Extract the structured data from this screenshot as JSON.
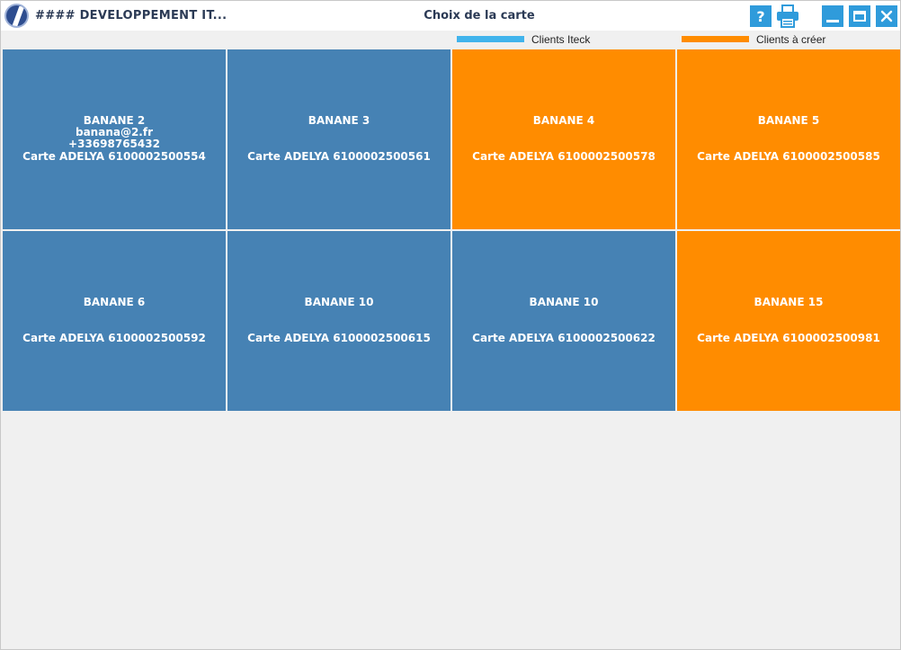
{
  "window": {
    "app_title": "####  DEVELOPPEMENT IT...",
    "title": "Choix de la carte",
    "help_glyph": "?"
  },
  "colors": {
    "iteck": "#4682b4",
    "to_create": "#ff8c00",
    "legend_iteck": "#41b4ec",
    "legend_to_create": "#ff8c00",
    "titlebar_buttons": "#2f9bdb"
  },
  "legend": {
    "iteck_label": "Clients Iteck",
    "to_create_label": "Clients à créer"
  },
  "cards": [
    {
      "name": "BANANE 2",
      "email": "banana@2.fr",
      "phone": "+33698765432",
      "card": "Carte ADELYA 6100002500554",
      "status": "iteck"
    },
    {
      "name": "BANANE 3",
      "email": "",
      "phone": "",
      "card": "Carte ADELYA 6100002500561",
      "status": "iteck"
    },
    {
      "name": "BANANE 4",
      "email": "",
      "phone": "",
      "card": "Carte ADELYA 6100002500578",
      "status": "to_create"
    },
    {
      "name": "BANANE 5",
      "email": "",
      "phone": "",
      "card": "Carte ADELYA 6100002500585",
      "status": "to_create"
    },
    {
      "name": "BANANE 6",
      "email": "",
      "phone": "",
      "card": "Carte ADELYA 6100002500592",
      "status": "iteck"
    },
    {
      "name": "BANANE 10",
      "email": "",
      "phone": "",
      "card": "Carte ADELYA 6100002500615",
      "status": "iteck"
    },
    {
      "name": "BANANE 10",
      "email": "",
      "phone": "",
      "card": "Carte ADELYA 6100002500622",
      "status": "iteck"
    },
    {
      "name": "BANANE 15",
      "email": "",
      "phone": "",
      "card": "Carte ADELYA 6100002500981",
      "status": "to_create"
    }
  ]
}
